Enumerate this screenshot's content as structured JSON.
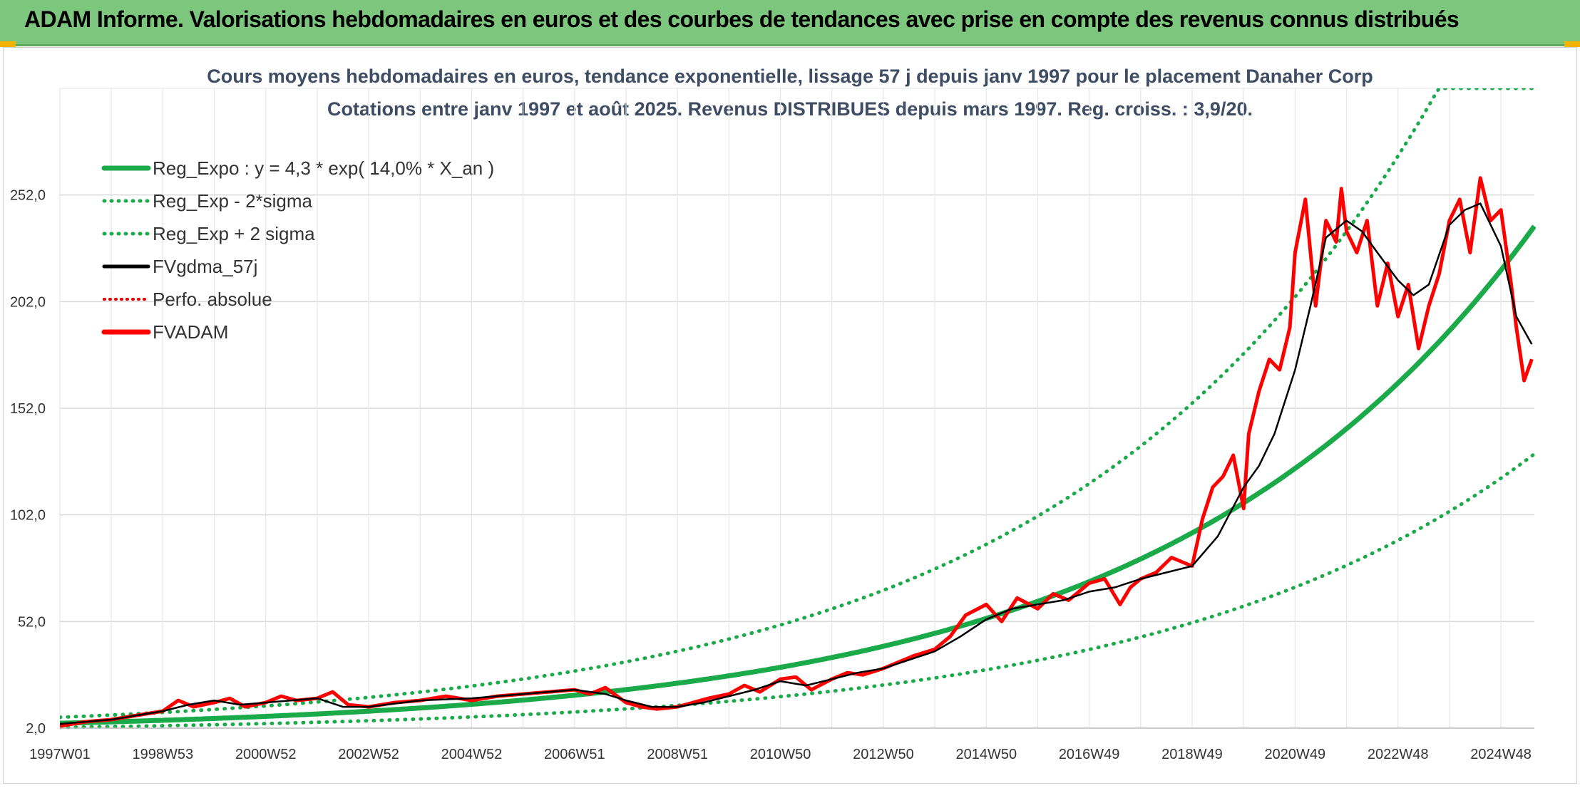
{
  "header": {
    "title": "ADAM Informe. Valorisations hebdomadaires en euros et des courbes de tendances avec prise en compte des revenus connus distribués"
  },
  "chart_data": {
    "type": "line",
    "title": "Cours moyens hebdomadaires en euros, tendance exponentielle, lissage 57 j depuis janv 1997 pour le placement Danaher Corp",
    "subtitle": "Cotations entre janv 1997 et août 2025. Revenus DISTRIBUES depuis mars 1997. Reg. croiss. : 3,9/20.",
    "xlabel": "",
    "ylabel": "",
    "ylim": [
      2,
      302
    ],
    "y_ticks": [
      "2,0",
      "52,0",
      "102,0",
      "152,0",
      "202,0",
      "252,0"
    ],
    "y_tick_values": [
      2,
      52,
      102,
      152,
      202,
      252
    ],
    "x_range": [
      1997.0,
      2025.65
    ],
    "x_ticks": [
      "1997W01",
      "1998W53",
      "2000W52",
      "2002W52",
      "2004W52",
      "2006W51",
      "2008W51",
      "2010W50",
      "2012W50",
      "2014W50",
      "2016W49",
      "2018W49",
      "2020W49",
      "2022W48",
      "2024W48"
    ],
    "x_tick_values": [
      1997.0,
      1999.0,
      2001.0,
      2003.0,
      2005.0,
      2007.0,
      2009.0,
      2011.0,
      2013.0,
      2015.0,
      2017.0,
      2019.0,
      2021.0,
      2023.0,
      2025.0
    ],
    "grid": true,
    "legend_position": "top-left",
    "regression": {
      "a": 4.3,
      "rate": 0.14,
      "start_year": 1997.0
    },
    "series": [
      {
        "name": "Reg_Expo : y = 4,3 * exp( 14,0% *  X_an )",
        "style": "solid-thick",
        "color": "#1aaa4a"
      },
      {
        "name": "Reg_Exp - 2*sigma",
        "style": "dotted",
        "color": "#1aaa4a"
      },
      {
        "name": "Reg_Exp + 2 sigma",
        "style": "dotted",
        "color": "#1aaa4a"
      },
      {
        "name": "FVgdma_57j",
        "style": "solid",
        "color": "#000000",
        "x": [
          1997.0,
          1998.0,
          1998.5,
          1999.0,
          1999.5,
          2000.0,
          2000.5,
          2001.0,
          2001.5,
          2002.0,
          2002.5,
          2003.0,
          2004.0,
          2005.0,
          2006.0,
          2007.0,
          2007.6,
          2008.0,
          2008.5,
          2009.0,
          2009.5,
          2010.0,
          2010.5,
          2011.0,
          2011.5,
          2012.0,
          2012.5,
          2013.0,
          2013.5,
          2014.0,
          2014.5,
          2015.0,
          2015.5,
          2016.0,
          2016.5,
          2017.0,
          2017.5,
          2018.0,
          2018.5,
          2019.0,
          2019.5,
          2020.0,
          2020.3,
          2020.6,
          2021.0,
          2021.3,
          2021.6,
          2022.0,
          2022.3,
          2022.6,
          2023.0,
          2023.3,
          2023.6,
          2024.0,
          2024.3,
          2024.6,
          2025.0,
          2025.3,
          2025.6
        ],
        "values": [
          4,
          6,
          8,
          10,
          13,
          15,
          13,
          14,
          15,
          16,
          12,
          12,
          15,
          16,
          18,
          20,
          18,
          15,
          12,
          12,
          14,
          17,
          20,
          24,
          22,
          25,
          28,
          30,
          34,
          38,
          45,
          53,
          58,
          60,
          62,
          66,
          68,
          72,
          75,
          78,
          92,
          115,
          125,
          140,
          170,
          200,
          232,
          240,
          235,
          225,
          212,
          205,
          210,
          238,
          245,
          248,
          228,
          195,
          182
        ]
      },
      {
        "name": "Perfo. absolue",
        "style": "dotted",
        "color": "#e00000"
      },
      {
        "name": "FVADAM",
        "style": "solid-thick",
        "color": "#ff0000",
        "x": [
          1997.0,
          1997.5,
          1998.0,
          1998.5,
          1999.0,
          1999.3,
          1999.6,
          2000.0,
          2000.3,
          2000.6,
          2001.0,
          2001.3,
          2001.6,
          2002.0,
          2002.3,
          2002.6,
          2003.0,
          2003.5,
          2004.0,
          2004.5,
          2005.0,
          2005.5,
          2006.0,
          2006.5,
          2007.0,
          2007.3,
          2007.6,
          2008.0,
          2008.3,
          2008.6,
          2009.0,
          2009.3,
          2009.6,
          2010.0,
          2010.3,
          2010.6,
          2011.0,
          2011.3,
          2011.6,
          2012.0,
          2012.3,
          2012.6,
          2013.0,
          2013.3,
          2013.6,
          2014.0,
          2014.3,
          2014.6,
          2015.0,
          2015.3,
          2015.6,
          2016.0,
          2016.3,
          2016.6,
          2017.0,
          2017.3,
          2017.6,
          2017.8,
          2018.0,
          2018.3,
          2018.6,
          2019.0,
          2019.2,
          2019.4,
          2019.6,
          2019.8,
          2020.0,
          2020.1,
          2020.3,
          2020.5,
          2020.7,
          2020.9,
          2021.0,
          2021.2,
          2021.4,
          2021.6,
          2021.8,
          2021.9,
          2022.0,
          2022.2,
          2022.4,
          2022.6,
          2022.8,
          2023.0,
          2023.2,
          2023.4,
          2023.6,
          2023.8,
          2024.0,
          2024.2,
          2024.4,
          2024.6,
          2024.8,
          2025.0,
          2025.2,
          2025.3,
          2025.45,
          2025.6
        ],
        "values": [
          3,
          5,
          6,
          8,
          10,
          15,
          12,
          14,
          16,
          12,
          14,
          17,
          15,
          16,
          19,
          13,
          12,
          14,
          15,
          17,
          15,
          17,
          18,
          19,
          20,
          18,
          21,
          14,
          12,
          11,
          12,
          14,
          16,
          18,
          22,
          19,
          25,
          26,
          20,
          25,
          28,
          27,
          30,
          33,
          36,
          39,
          45,
          55,
          60,
          52,
          63,
          58,
          65,
          62,
          70,
          72,
          60,
          68,
          72,
          75,
          82,
          78,
          100,
          115,
          120,
          130,
          105,
          140,
          160,
          175,
          170,
          190,
          225,
          250,
          200,
          240,
          230,
          255,
          235,
          225,
          240,
          200,
          220,
          195,
          210,
          180,
          200,
          215,
          240,
          250,
          225,
          260,
          240,
          245,
          210,
          190,
          165,
          175
        ]
      }
    ]
  }
}
